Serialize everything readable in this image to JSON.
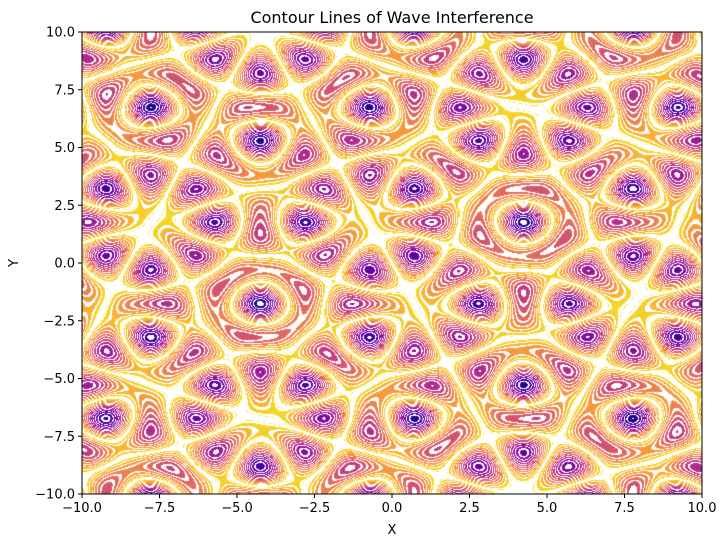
{
  "chart_data": {
    "type": "contour",
    "title": "Contour Lines of Wave Interference",
    "xlabel": "X",
    "ylabel": "Y",
    "xlim": [
      -10,
      10
    ],
    "ylim": [
      -10,
      10
    ],
    "xticks": [
      -10,
      -7.5,
      -5,
      -2.5,
      0,
      2.5,
      5,
      7.5,
      10
    ],
    "yticks": [
      -10,
      -7.5,
      -5,
      -2.5,
      0,
      2.5,
      5,
      7.5,
      10
    ],
    "xtick_labels": [
      "−10.0",
      "−7.5",
      "−5.0",
      "−2.5",
      "0.0",
      "2.5",
      "5.0",
      "7.5",
      "10.0"
    ],
    "ytick_labels": [
      "−10.0",
      "−7.5",
      "−5.0",
      "−2.5",
      "0.0",
      "2.5",
      "5.0",
      "7.5",
      "10.0"
    ],
    "colormap": [
      "#0d0887",
      "#6a00a8",
      "#b12a90",
      "#e16462",
      "#fca636",
      "#f0f921"
    ],
    "grid": false
  }
}
